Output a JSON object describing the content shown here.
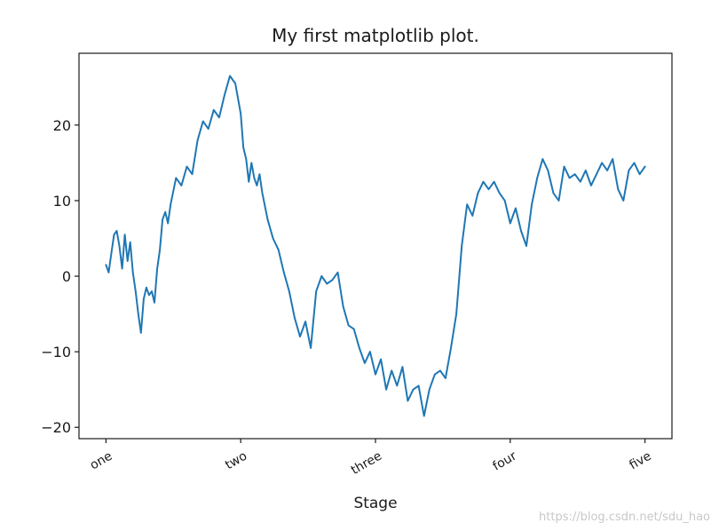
{
  "chart_data": {
    "type": "line",
    "title": "My first matplotlib plot.",
    "xlabel": "Stage",
    "ylabel": "",
    "xlim": [
      -50,
      1050
    ],
    "ylim": [
      -21.5,
      29.5
    ],
    "grid": false,
    "xticks": [
      0,
      250,
      500,
      750,
      1000
    ],
    "xtick_labels": [
      "one",
      "two",
      "three",
      "four",
      "five"
    ],
    "yticks": [
      -20,
      -10,
      0,
      10,
      20
    ],
    "ytick_labels": [
      "−20",
      "−10",
      "0",
      "10",
      "20"
    ],
    "series": [
      {
        "color": "#1f77b4",
        "x": [
          0,
          5,
          10,
          15,
          20,
          25,
          30,
          35,
          40,
          45,
          50,
          55,
          60,
          65,
          70,
          75,
          80,
          85,
          90,
          95,
          100,
          105,
          110,
          115,
          120,
          130,
          140,
          150,
          160,
          170,
          180,
          190,
          200,
          210,
          220,
          230,
          240,
          250,
          255,
          260,
          265,
          270,
          275,
          280,
          285,
          290,
          300,
          310,
          320,
          330,
          340,
          350,
          360,
          370,
          380,
          390,
          400,
          410,
          420,
          430,
          440,
          450,
          460,
          470,
          480,
          490,
          500,
          510,
          520,
          530,
          540,
          550,
          560,
          570,
          580,
          590,
          600,
          610,
          620,
          630,
          640,
          650,
          660,
          670,
          680,
          690,
          700,
          710,
          720,
          730,
          740,
          750,
          760,
          770,
          780,
          790,
          800,
          810,
          820,
          830,
          840,
          850,
          860,
          870,
          880,
          890,
          900,
          910,
          920,
          930,
          940,
          950,
          960,
          970,
          980,
          990,
          1000
        ],
        "y": [
          1.5,
          0.5,
          3.0,
          5.5,
          6.0,
          4.0,
          1.0,
          5.5,
          2.0,
          4.5,
          0.5,
          -2.0,
          -5.0,
          -7.5,
          -3.0,
          -1.5,
          -2.5,
          -2.0,
          -3.5,
          1.0,
          3.5,
          7.5,
          8.5,
          7.0,
          9.5,
          13.0,
          12.0,
          14.5,
          13.5,
          18.0,
          20.5,
          19.5,
          22.0,
          21.0,
          24.0,
          26.5,
          25.5,
          21.5,
          17.0,
          15.5,
          12.5,
          15.0,
          13.0,
          12.0,
          13.5,
          11.0,
          7.5,
          5.0,
          3.5,
          0.5,
          -2.0,
          -5.5,
          -8.0,
          -6.0,
          -9.5,
          -2.0,
          0.0,
          -1.0,
          -0.5,
          0.5,
          -4.0,
          -6.5,
          -7.0,
          -9.5,
          -11.5,
          -10.0,
          -13.0,
          -11.0,
          -15.0,
          -12.5,
          -14.5,
          -12.0,
          -16.5,
          -15.0,
          -14.5,
          -18.5,
          -15.0,
          -13.0,
          -12.5,
          -13.5,
          -9.5,
          -5.0,
          4.0,
          9.5,
          8.0,
          11.0,
          12.5,
          11.5,
          12.5,
          11.0,
          10.0,
          7.0,
          9.0,
          6.0,
          4.0,
          9.5,
          13.0,
          15.5,
          14.0,
          11.0,
          10.0,
          14.5,
          13.0,
          13.5,
          12.5,
          14.0,
          12.0,
          13.5,
          15.0,
          14.0,
          15.5,
          11.5,
          10.0,
          14.0,
          15.0,
          13.5,
          14.5
        ]
      }
    ]
  },
  "watermark": "https://blog.csdn.net/sdu_hao"
}
